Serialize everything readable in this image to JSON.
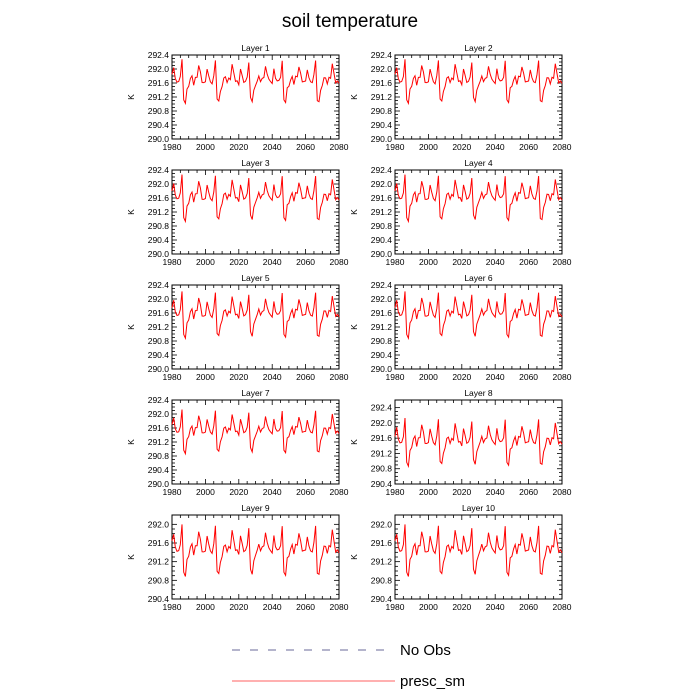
{
  "chart_data": {
    "type": "line",
    "title": "soil temperature",
    "ylabel": "K",
    "xlim": [
      1980,
      2080
    ],
    "xticks": [
      1980,
      2000,
      2020,
      2040,
      2060,
      2080
    ],
    "legend": {
      "placement": "bottom-center",
      "entries": [
        {
          "name": "No Obs",
          "style": "dashed",
          "color": "#6a6a9a"
        },
        {
          "name": "presc_sm",
          "style": "solid",
          "color": "#ff6060"
        }
      ]
    },
    "series_color": "#ff0000",
    "base_pattern": [
      0.0,
      0.5,
      0.25,
      0.05,
      0.0,
      0.1,
      0.35,
      1.0,
      -1.2,
      -0.5,
      -0.2,
      -0.1,
      0.1,
      0.3,
      -0.1,
      0.2,
      0.15,
      0.2,
      0.85,
      0.1,
      0.05,
      0.05,
      0.0
    ],
    "panels": [
      {
        "title": "Layer 1",
        "ylim": [
          290.0,
          292.4
        ],
        "yticks": [
          290.0,
          290.4,
          290.8,
          291.2,
          291.6,
          292.0,
          292.4
        ],
        "ytick_labels": [
          "290.0",
          "290.4",
          "290.8",
          "291.2",
          "291.6",
          "292.0",
          "292.4"
        ],
        "base": 291.6,
        "scale": 0.85,
        "start": 291.85
      },
      {
        "title": "Layer 2",
        "ylim": [
          290.0,
          292.4
        ],
        "yticks": [
          290.0,
          290.4,
          290.8,
          291.2,
          291.6,
          292.0,
          292.4
        ],
        "ytick_labels": [
          "290.0",
          "290.4",
          "290.8",
          "291.2",
          "291.6",
          "292.0",
          "292.4"
        ],
        "base": 291.6,
        "scale": 0.85,
        "start": 291.85
      },
      {
        "title": "Layer 3",
        "ylim": [
          290.0,
          292.4
        ],
        "yticks": [
          290.0,
          290.4,
          290.8,
          291.2,
          291.6,
          292.0,
          292.4
        ],
        "ytick_labels": [
          "290.0",
          "290.4",
          "290.8",
          "291.2",
          "291.6",
          "292.0",
          "292.4"
        ],
        "base": 291.55,
        "scale": 0.9,
        "start": 291.8
      },
      {
        "title": "Layer 4",
        "ylim": [
          290.0,
          292.4
        ],
        "yticks": [
          290.0,
          290.4,
          290.8,
          291.2,
          291.6,
          292.0,
          292.4
        ],
        "ytick_labels": [
          "290.0",
          "290.4",
          "290.8",
          "291.2",
          "291.6",
          "292.0",
          "292.4"
        ],
        "base": 291.55,
        "scale": 0.9,
        "start": 291.8
      },
      {
        "title": "Layer 5",
        "ylim": [
          290.0,
          292.4
        ],
        "yticks": [
          290.0,
          290.4,
          290.8,
          291.2,
          291.6,
          292.0,
          292.4
        ],
        "ytick_labels": [
          "290.0",
          "290.4",
          "290.8",
          "291.2",
          "291.6",
          "292.0",
          "292.4"
        ],
        "base": 291.5,
        "scale": 0.9,
        "start": 291.75
      },
      {
        "title": "Layer 6",
        "ylim": [
          290.0,
          292.4
        ],
        "yticks": [
          290.0,
          290.4,
          290.8,
          291.2,
          291.6,
          292.0,
          292.4
        ],
        "ytick_labels": [
          "290.0",
          "290.4",
          "290.8",
          "291.2",
          "291.6",
          "292.0",
          "292.4"
        ],
        "base": 291.5,
        "scale": 0.9,
        "start": 291.75
      },
      {
        "title": "Layer 7",
        "ylim": [
          290.0,
          292.4
        ],
        "yticks": [
          290.0,
          290.4,
          290.8,
          291.2,
          291.6,
          292.0,
          292.4
        ],
        "ytick_labels": [
          "290.0",
          "290.4",
          "290.8",
          "291.2",
          "291.6",
          "292.0",
          "292.4"
        ],
        "base": 291.45,
        "scale": 0.85,
        "start": 291.7
      },
      {
        "title": "Layer 8",
        "ylim": [
          290.4,
          292.6
        ],
        "yticks": [
          290.4,
          290.8,
          291.2,
          291.6,
          292.0,
          292.4
        ],
        "ytick_labels": [
          "290.4",
          "290.8",
          "291.2",
          "291.6",
          "292.0",
          "292.4"
        ],
        "base": 291.45,
        "scale": 0.85,
        "start": 291.65
      },
      {
        "title": "Layer 9",
        "ylim": [
          290.4,
          292.2
        ],
        "yticks": [
          290.4,
          290.8,
          291.2,
          291.6,
          292.0
        ],
        "ytick_labels": [
          "290.4",
          "290.8",
          "291.2",
          "291.6",
          "292.0"
        ],
        "base": 291.4,
        "scale": 0.75,
        "start": 291.65
      },
      {
        "title": "Layer 10",
        "ylim": [
          290.4,
          292.2
        ],
        "yticks": [
          290.4,
          290.8,
          291.2,
          291.6,
          292.0
        ],
        "ytick_labels": [
          "290.4",
          "290.8",
          "291.2",
          "291.6",
          "292.0"
        ],
        "base": 291.4,
        "scale": 0.75,
        "start": 291.65
      }
    ]
  }
}
